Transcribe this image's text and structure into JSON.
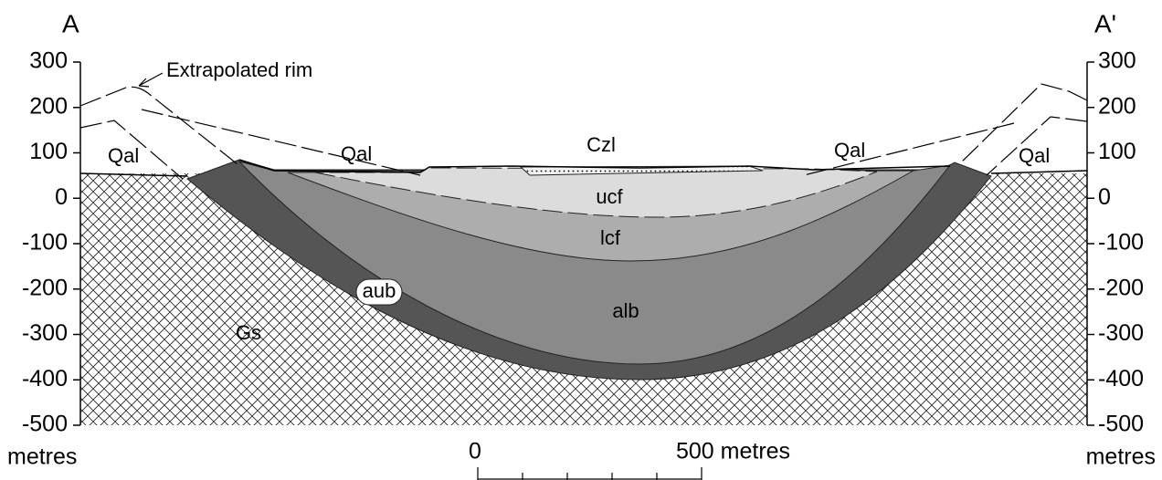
{
  "header": {
    "left_label": "A",
    "right_label": "A'"
  },
  "axis": {
    "unit": "metres",
    "ylim": [
      -500,
      300
    ],
    "ticks": [
      300,
      200,
      100,
      0,
      -100,
      -200,
      -300,
      -400,
      -500
    ]
  },
  "labels": {
    "rim": "Extrapolated rim",
    "qal": [
      "Qal",
      "Qal",
      "Qal",
      "Qal"
    ],
    "czl": "Czl",
    "ucf": "ucf",
    "lcf": "lcf",
    "alb": "alb",
    "aub": "aub",
    "gs": "Gs"
  },
  "scale_bar": {
    "start": "0",
    "end": "500 metres"
  }
}
